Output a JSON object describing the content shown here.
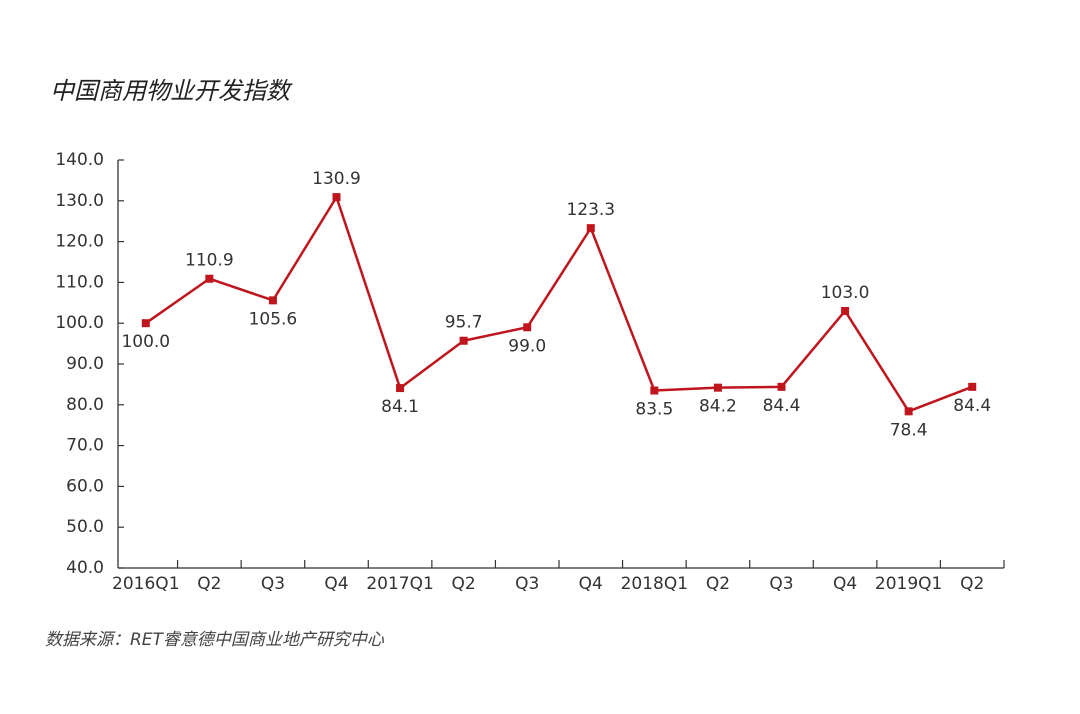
{
  "chart_data": {
    "type": "line",
    "title": "中国商用物业开发指数",
    "source": "数据来源：RET睿意德中国商业地产研究中心",
    "categories": [
      "2016Q1",
      "Q2",
      "Q3",
      "Q4",
      "2017Q1",
      "Q2",
      "Q3",
      "Q4",
      "2018Q1",
      "Q2",
      "Q3",
      "Q4",
      "2019Q1",
      "Q2"
    ],
    "values": [
      100.0,
      110.9,
      105.6,
      130.9,
      84.1,
      95.7,
      99.0,
      123.3,
      83.5,
      84.2,
      84.4,
      103.0,
      78.4,
      84.4
    ],
    "value_labels": [
      "100.0",
      "110.9",
      "105.6",
      "130.9",
      "84.1",
      "95.7",
      "99.0",
      "123.3",
      "83.5",
      "84.2",
      "84.4",
      "103.0",
      "78.4",
      "84.4"
    ],
    "color": "#c0151d",
    "ylim": [
      40,
      140
    ],
    "yticks": [
      {
        "value": 40,
        "label": "40.0"
      },
      {
        "value": 50,
        "label": "50.0"
      },
      {
        "value": 60,
        "label": "60.0"
      },
      {
        "value": 70,
        "label": "70.0"
      },
      {
        "value": 80,
        "label": "80.0"
      },
      {
        "value": 90,
        "label": "90.0"
      },
      {
        "value": 100,
        "label": "100.0"
      },
      {
        "value": 110,
        "label": "110.0"
      },
      {
        "value": 120,
        "label": "120.0"
      },
      {
        "value": 130,
        "label": "130.0"
      },
      {
        "value": 140,
        "label": "140.0"
      }
    ],
    "grid": false
  }
}
